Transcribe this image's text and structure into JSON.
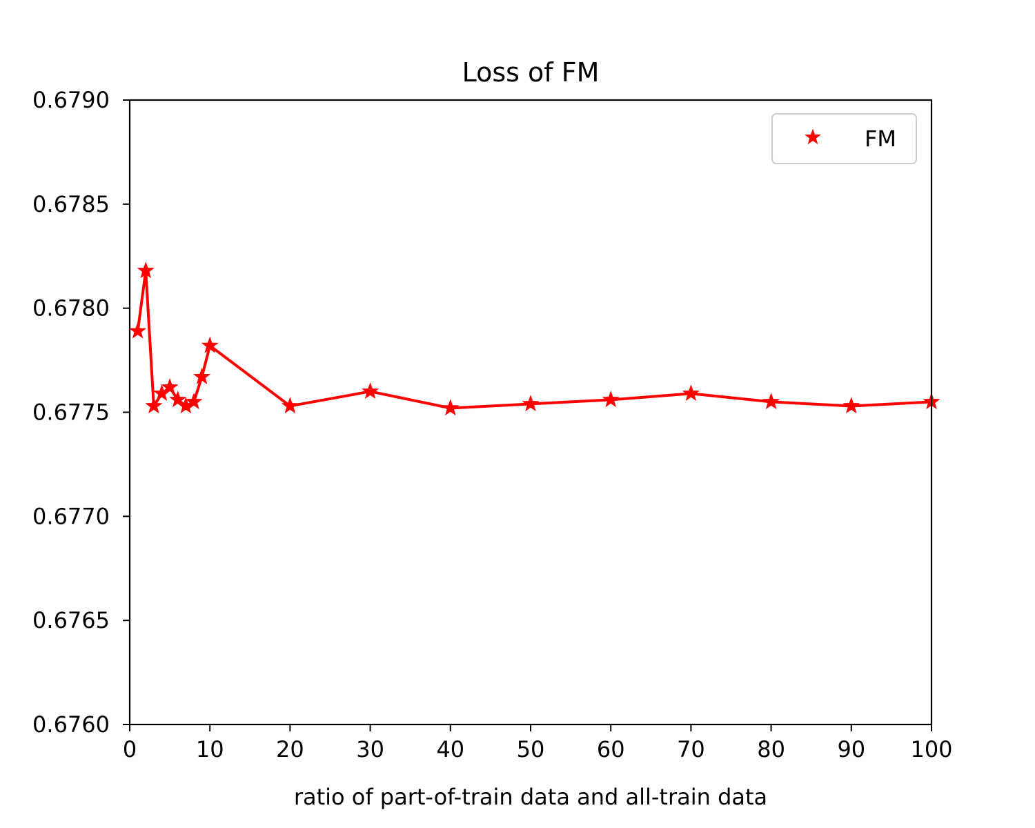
{
  "chart_data": {
    "type": "line",
    "title": "Loss of FM",
    "xlabel": "ratio of part-of-train data and all-train data",
    "ylabel": "",
    "xlim": [
      0,
      100
    ],
    "ylim": [
      0.676,
      0.679
    ],
    "xticks": [
      "0",
      "10",
      "20",
      "30",
      "40",
      "50",
      "60",
      "70",
      "80",
      "90",
      "100"
    ],
    "xtick_values": [
      0,
      10,
      20,
      30,
      40,
      50,
      60,
      70,
      80,
      90,
      100
    ],
    "yticks": [
      "0.6760",
      "0.6765",
      "0.6770",
      "0.6775",
      "0.6780",
      "0.6785",
      "0.6790"
    ],
    "ytick_values": [
      0.676,
      0.6765,
      0.677,
      0.6775,
      0.678,
      0.6785,
      0.679
    ],
    "grid": false,
    "legend_position": "top-right",
    "series": [
      {
        "name": "FM",
        "color": "#ff0000",
        "marker": "star",
        "x": [
          1,
          2,
          3,
          4,
          5,
          6,
          7,
          8,
          9,
          10,
          20,
          30,
          40,
          50,
          60,
          70,
          80,
          90,
          100
        ],
        "y": [
          0.67789,
          0.67818,
          0.67753,
          0.67759,
          0.67762,
          0.67756,
          0.67753,
          0.67755,
          0.67767,
          0.67782,
          0.67753,
          0.6776,
          0.67752,
          0.67754,
          0.67756,
          0.67759,
          0.67755,
          0.67753,
          0.67755
        ]
      }
    ]
  }
}
